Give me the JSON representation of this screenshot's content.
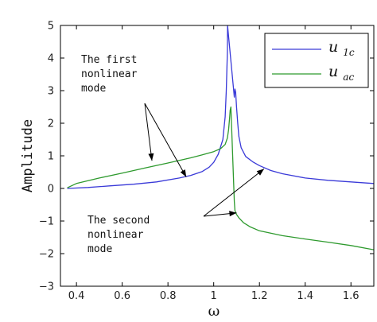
{
  "chart_data": {
    "type": "line",
    "xlabel": "ω",
    "ylabel": "Amplitude",
    "xlim": [
      0.33,
      1.7
    ],
    "ylim": [
      -3,
      5
    ],
    "xticks": [
      "0.4",
      "0.6",
      "0.8",
      "1",
      "1.2",
      "1.4",
      "1.6"
    ],
    "xtick_values": [
      0.4,
      0.6,
      0.8,
      1.0,
      1.2,
      1.4,
      1.6
    ],
    "yticks": [
      "−3",
      "−2",
      "−1",
      "0",
      "1",
      "2",
      "3",
      "4",
      "5"
    ],
    "ytick_values": [
      -3,
      -2,
      -1,
      0,
      1,
      2,
      3,
      4,
      5
    ],
    "grid": false,
    "legend_position": "top-right",
    "series": [
      {
        "name_main": "u",
        "name_sub": "1c",
        "color": "#3a3ad8",
        "x": [
          0.36,
          0.45,
          0.55,
          0.65,
          0.75,
          0.85,
          0.9,
          0.95,
          0.98,
          1.0,
          1.02,
          1.04,
          1.05,
          1.055,
          1.06,
          1.0605,
          1.09,
          1.093,
          1.096,
          1.1,
          1.105,
          1.11,
          1.12,
          1.14,
          1.17,
          1.2,
          1.25,
          1.3,
          1.4,
          1.5,
          1.6,
          1.7
        ],
        "y": [
          0.0,
          0.03,
          0.08,
          0.13,
          0.2,
          0.32,
          0.4,
          0.52,
          0.65,
          0.8,
          1.05,
          1.5,
          2.2,
          3.0,
          4.2,
          5.0,
          2.8,
          3.05,
          2.95,
          2.5,
          2.0,
          1.6,
          1.25,
          0.98,
          0.82,
          0.7,
          0.55,
          0.45,
          0.32,
          0.25,
          0.2,
          0.15
        ]
      },
      {
        "name_main": "u",
        "name_sub": "ac",
        "color": "#2e9a2e",
        "x": [
          0.36,
          0.4,
          0.5,
          0.6,
          0.7,
          0.8,
          0.9,
          0.95,
          1.0,
          1.03,
          1.05,
          1.06,
          1.065,
          1.07,
          1.072,
          1.075,
          1.09,
          1.093,
          1.1,
          1.11,
          1.13,
          1.16,
          1.2,
          1.3,
          1.4,
          1.5,
          1.6,
          1.7
        ],
        "y": [
          0.02,
          0.15,
          0.32,
          0.47,
          0.63,
          0.78,
          0.94,
          1.03,
          1.13,
          1.22,
          1.35,
          1.55,
          1.8,
          2.2,
          2.4,
          2.5,
          -0.4,
          -0.68,
          -0.8,
          -0.9,
          -1.05,
          -1.18,
          -1.3,
          -1.45,
          -1.55,
          -1.65,
          -1.75,
          -1.88
        ]
      }
    ],
    "annotations": [
      {
        "lines": [
          "The first",
          "nonlinear",
          "mode"
        ],
        "arrow_targets": [
          [
            0.73,
            0.85
          ],
          [
            0.88,
            0.35
          ]
        ]
      },
      {
        "lines": [
          "The second",
          "nonlinear",
          "mode"
        ],
        "arrow_targets": [
          [
            1.1,
            -0.75
          ],
          [
            1.22,
            0.6
          ]
        ]
      }
    ]
  }
}
